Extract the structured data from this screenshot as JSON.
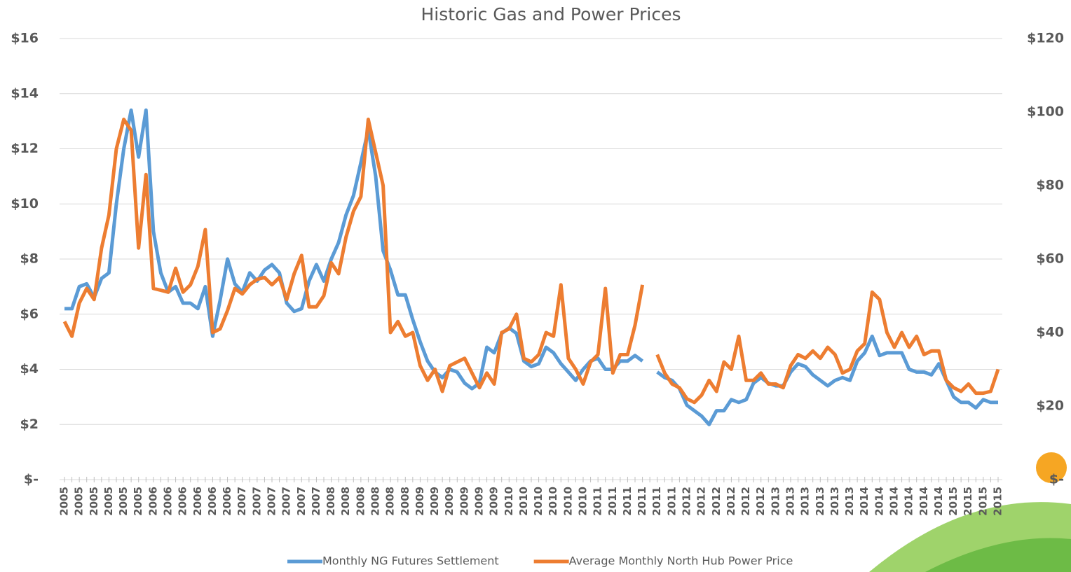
{
  "chart_data": {
    "type": "line",
    "title": "Historic Gas and Power Prices",
    "categories": [
      "2005",
      null,
      "2005",
      null,
      "2005",
      null,
      "2005",
      null,
      "2005",
      null,
      "2005",
      null,
      "2006",
      null,
      "2006",
      null,
      "2006",
      null,
      "2006",
      null,
      "2006",
      null,
      "2006",
      null,
      "2007",
      null,
      "2007",
      null,
      "2007",
      null,
      "2007",
      null,
      "2007",
      null,
      "2007",
      null,
      "2008",
      null,
      "2008",
      null,
      "2008",
      null,
      "2008",
      null,
      "2008",
      null,
      "2008",
      null,
      "2009",
      null,
      "2009",
      null,
      "2009",
      null,
      "2009",
      null,
      "2009",
      null,
      "2009",
      null,
      "2010",
      null,
      "2010",
      null,
      "2010",
      null,
      "2010",
      null,
      "2010",
      null,
      "2010",
      null,
      "2011",
      null,
      "2011",
      null,
      "2011",
      null,
      "2011",
      null,
      "2011",
      null,
      "2011",
      null,
      "2012",
      null,
      "2012",
      null,
      "2012",
      null,
      "2012",
      null,
      "2012",
      null,
      "2012",
      null,
      "2013",
      null,
      "2013",
      null,
      "2013",
      null,
      "2013",
      null,
      "2013",
      null,
      "2013",
      null,
      "2014",
      null,
      "2014",
      null,
      "2014",
      null,
      "2014",
      null,
      "2014",
      null,
      "2014",
      null,
      "2015",
      null,
      "2015",
      null,
      "2015",
      null,
      "2015"
    ],
    "series": [
      {
        "name": "Monthly NG Futures Settlement",
        "color": "#5b9bd5",
        "axis": "y",
        "values": [
          6.2,
          6.2,
          7.0,
          7.1,
          6.6,
          7.3,
          7.5,
          10.0,
          12.0,
          13.4,
          11.7,
          13.4,
          9.0,
          7.5,
          6.8,
          7.0,
          6.4,
          6.4,
          6.2,
          7.0,
          5.2,
          6.5,
          8.0,
          7.1,
          6.8,
          7.5,
          7.2,
          7.6,
          7.8,
          7.5,
          6.4,
          6.1,
          6.2,
          7.2,
          7.8,
          7.2,
          8.0,
          8.6,
          9.6,
          10.3,
          11.5,
          12.7,
          11.0,
          8.3,
          7.6,
          6.7,
          6.7,
          5.8,
          5.0,
          4.3,
          3.9,
          3.7,
          4.0,
          3.9,
          3.5,
          3.3,
          3.5,
          4.8,
          4.6,
          5.3,
          5.5,
          5.3,
          4.3,
          4.1,
          4.2,
          4.8,
          4.6,
          4.2,
          3.9,
          3.6,
          4.0,
          4.3,
          4.4,
          4.0,
          4.0,
          4.3,
          4.3,
          4.5,
          4.3,
          null,
          3.9,
          3.7,
          3.6,
          3.3,
          2.7,
          2.5,
          2.3,
          2.0,
          2.5,
          2.5,
          2.9,
          2.8,
          2.9,
          3.5,
          3.7,
          3.5,
          3.4,
          3.4,
          3.9,
          4.2,
          4.1,
          3.8,
          3.6,
          3.4,
          3.6,
          3.7,
          3.6,
          4.3,
          4.6,
          5.2,
          4.5,
          4.6,
          4.6,
          4.6,
          4.0,
          3.9,
          3.9,
          3.8,
          4.2,
          3.6,
          3.0,
          2.8,
          2.8,
          2.6,
          2.9,
          2.8,
          2.8
        ]
      },
      {
        "name": "Average Monthly North Hub Power Price",
        "color": "#ed7d31",
        "axis": "y2",
        "values": [
          43,
          39,
          48,
          52,
          49,
          63,
          72,
          90,
          98,
          95,
          63,
          83,
          52,
          51.5,
          51,
          57.5,
          51,
          53,
          58,
          68,
          40,
          41,
          46,
          52,
          50.5,
          53,
          54.5,
          55,
          53,
          55,
          49,
          56,
          61,
          47,
          47,
          50,
          59,
          56,
          66,
          73,
          77,
          98,
          89,
          80,
          40,
          43,
          39,
          40,
          31,
          27,
          30,
          24,
          31,
          32,
          33,
          29,
          25,
          29,
          26,
          40,
          41,
          45,
          33,
          32,
          34,
          40,
          39,
          53,
          33,
          30,
          26,
          32,
          34,
          52,
          29,
          34,
          34,
          42,
          53,
          null,
          34,
          29,
          26,
          25,
          22,
          21,
          23,
          27,
          24,
          32,
          30,
          39,
          27,
          27,
          29,
          26,
          26,
          25,
          31,
          34,
          33,
          35,
          33,
          36,
          34,
          29,
          30,
          35,
          37,
          51,
          49,
          40,
          36,
          40,
          36,
          39,
          34,
          35,
          35,
          27,
          25,
          24,
          26,
          23.5,
          23.5,
          24,
          30
        ]
      }
    ],
    "ylim": [
      0,
      16
    ],
    "yticks": [
      {
        "value": 0,
        "label": "$-"
      },
      {
        "value": 2,
        "label": "$2"
      },
      {
        "value": 4,
        "label": "$4"
      },
      {
        "value": 6,
        "label": "$6"
      },
      {
        "value": 8,
        "label": "$8"
      },
      {
        "value": 10,
        "label": "$10"
      },
      {
        "value": 12,
        "label": "$12"
      },
      {
        "value": 14,
        "label": "$14"
      },
      {
        "value": 16,
        "label": "$16"
      }
    ],
    "y2lim": [
      0,
      120
    ],
    "y2ticks": [
      {
        "value": 0,
        "label": "$-"
      },
      {
        "value": 20,
        "label": "$20"
      },
      {
        "value": 40,
        "label": "$40"
      },
      {
        "value": 60,
        "label": "$60"
      },
      {
        "value": 80,
        "label": "$80"
      },
      {
        "value": 100,
        "label": "$100"
      },
      {
        "value": 120,
        "label": "$120"
      }
    ],
    "grid": true,
    "legend": "bottom"
  }
}
